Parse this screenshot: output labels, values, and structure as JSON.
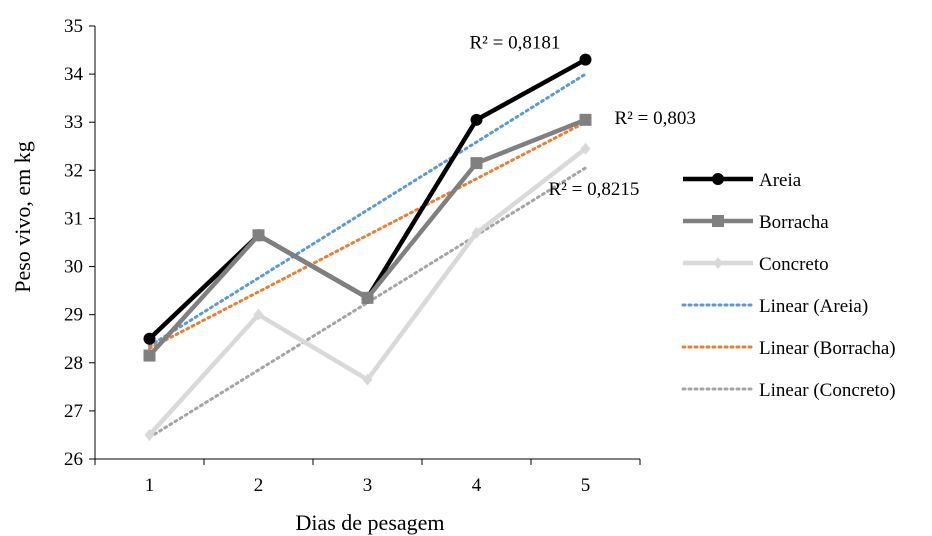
{
  "chart_data": {
    "type": "line",
    "xlabel": "Dias de pesagem",
    "ylabel": "Peso vivo, em kg",
    "categories": [
      "1",
      "2",
      "3",
      "4",
      "5"
    ],
    "ylim": [
      26,
      35
    ],
    "yticks": [
      "26",
      "27",
      "28",
      "29",
      "30",
      "31",
      "32",
      "33",
      "34",
      "35"
    ],
    "grid": false,
    "legend_position": "right",
    "series": [
      {
        "name": "Areia",
        "values": [
          28.5,
          30.65,
          29.35,
          33.05,
          34.3
        ],
        "color": "#000000",
        "marker": "circle"
      },
      {
        "name": "Borracha",
        "values": [
          28.15,
          30.65,
          29.35,
          32.15,
          33.05
        ],
        "color": "#808080",
        "marker": "square"
      },
      {
        "name": "Concreto",
        "values": [
          26.5,
          29.0,
          27.65,
          30.7,
          32.45
        ],
        "color": "#d9d9d9",
        "marker": "diamond"
      }
    ],
    "trendlines": [
      {
        "name": "Linear (Areia)",
        "type": "linear",
        "color": "#5b9bd5",
        "start": 28.35,
        "end": 34.0,
        "r2_label": "R² = 0,8181"
      },
      {
        "name": "Linear (Borracha)",
        "type": "linear",
        "color": "#ed7d31",
        "start": 28.3,
        "end": 33.0,
        "r2_label": "R² = 0,803"
      },
      {
        "name": "Linear (Concreto)",
        "type": "linear",
        "color": "#a5a5a5",
        "start": 26.45,
        "end": 32.05,
        "r2_label": "R² = 0,8215"
      }
    ]
  }
}
